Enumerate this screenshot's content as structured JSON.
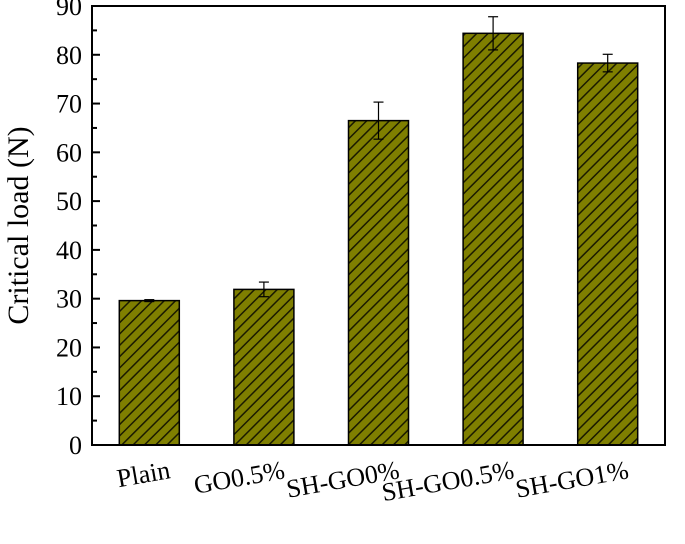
{
  "chart_data": {
    "type": "bar",
    "categories": [
      "Plain",
      "GO0.5%",
      "SH-GO0%",
      "SH-GO0.5%",
      "SH-GO1%"
    ],
    "values": [
      29.6,
      31.9,
      66.5,
      84.4,
      78.3
    ],
    "errors": [
      0.2,
      1.5,
      3.8,
      3.4,
      1.8
    ],
    "xlabel": "",
    "ylabel": "Critical load (N)",
    "ylim": [
      0,
      90
    ],
    "yticks": [
      "0",
      "10",
      "20",
      "30",
      "40",
      "50",
      "60",
      "70",
      "80",
      "90"
    ],
    "bar_fill": "#7f7f00",
    "hatch_color": "#1a1a00",
    "hatch": "diagonal",
    "grid": false,
    "legend": "none"
  }
}
